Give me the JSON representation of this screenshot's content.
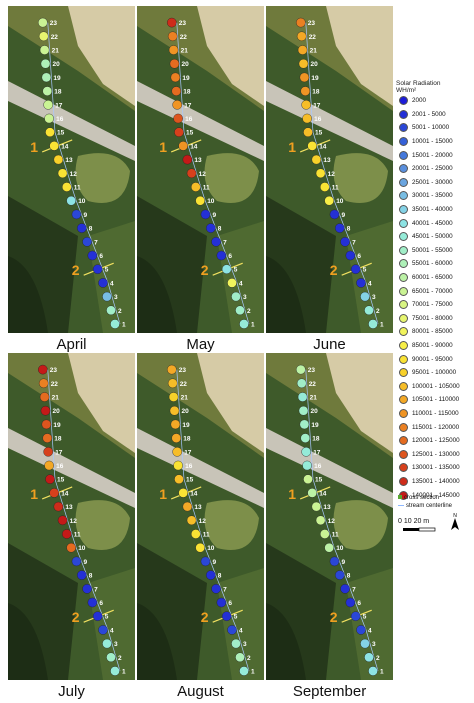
{
  "legend": {
    "title": "Solar Radiation",
    "unit": "WH/m²",
    "classes": [
      {
        "label": "2000",
        "color": "#1d1dd9"
      },
      {
        "label": "2001 - 5000",
        "color": "#2430d6"
      },
      {
        "label": "5001 - 10000",
        "color": "#2b47d6"
      },
      {
        "label": "10001 - 15000",
        "color": "#3560d8"
      },
      {
        "label": "15001 - 20000",
        "color": "#4478db"
      },
      {
        "label": "20001 - 25000",
        "color": "#5a8fdd"
      },
      {
        "label": "25001 - 30000",
        "color": "#6aa5e0"
      },
      {
        "label": "30001 - 35000",
        "color": "#78bde3"
      },
      {
        "label": "35001 - 40000",
        "color": "#84d2e6"
      },
      {
        "label": "40001 - 45000",
        "color": "#8de3e4"
      },
      {
        "label": "45001 - 50000",
        "color": "#95ebd8"
      },
      {
        "label": "50001 - 55000",
        "color": "#a1eec8"
      },
      {
        "label": "55001 - 60000",
        "color": "#aef0b8"
      },
      {
        "label": "60001 - 65000",
        "color": "#bcf2a6"
      },
      {
        "label": "65001 - 70000",
        "color": "#caf394"
      },
      {
        "label": "70001 - 75000",
        "color": "#d8f482"
      },
      {
        "label": "75001 - 80000",
        "color": "#e6f56f"
      },
      {
        "label": "80001 - 85000",
        "color": "#f1f45d"
      },
      {
        "label": "85001 - 90000",
        "color": "#f7ee47"
      },
      {
        "label": "90001 - 95000",
        "color": "#f9e234"
      },
      {
        "label": "95001 - 100000",
        "color": "#f8d12a"
      },
      {
        "label": "100001 - 105000",
        "color": "#f6bd28"
      },
      {
        "label": "105001 - 110000",
        "color": "#f3a826"
      },
      {
        "label": "110001 - 115000",
        "color": "#ef9424"
      },
      {
        "label": "115001 - 120000",
        "color": "#ea8022"
      },
      {
        "label": "120001 - 125000",
        "color": "#e46b20"
      },
      {
        "label": "125001 - 130000",
        "color": "#dd551e"
      },
      {
        "label": "130001 - 135000",
        "color": "#d6401c"
      },
      {
        "label": "135001 - 140000",
        "color": "#ce2c1a"
      },
      {
        "label": "140001 - 145000",
        "color": "#c41a18"
      }
    ],
    "cross_section_label": "cross section",
    "stream_label": "stream centerline",
    "scale_label": "0   10  20 m"
  },
  "cross_sections": [
    "1",
    "2"
  ],
  "panels": [
    {
      "month": "April",
      "points": [
        {
          "n": "1",
          "c": 10
        },
        {
          "n": "2",
          "c": 11
        },
        {
          "n": "3",
          "c": 7
        },
        {
          "n": "4",
          "c": 1
        },
        {
          "n": "5",
          "c": 1
        },
        {
          "n": "6",
          "c": 1
        },
        {
          "n": "7",
          "c": 2
        },
        {
          "n": "8",
          "c": 1
        },
        {
          "n": "9",
          "c": 2
        },
        {
          "n": "10",
          "c": 9
        },
        {
          "n": "11",
          "c": 19
        },
        {
          "n": "12",
          "c": 19
        },
        {
          "n": "13",
          "c": 20
        },
        {
          "n": "14",
          "c": 19
        },
        {
          "n": "15",
          "c": 19
        },
        {
          "n": "16",
          "c": 14
        },
        {
          "n": "17",
          "c": 14
        },
        {
          "n": "18",
          "c": 13
        },
        {
          "n": "19",
          "c": 12
        },
        {
          "n": "20",
          "c": 12
        },
        {
          "n": "21",
          "c": 14
        },
        {
          "n": "22",
          "c": 16
        },
        {
          "n": "23",
          "c": 14
        }
      ]
    },
    {
      "month": "May",
      "points": [
        {
          "n": "1",
          "c": 10
        },
        {
          "n": "2",
          "c": 11
        },
        {
          "n": "3",
          "c": 11
        },
        {
          "n": "4",
          "c": 17
        },
        {
          "n": "5",
          "c": 9
        },
        {
          "n": "6",
          "c": 1
        },
        {
          "n": "7",
          "c": 1
        },
        {
          "n": "8",
          "c": 1
        },
        {
          "n": "9",
          "c": 1
        },
        {
          "n": "10",
          "c": 19
        },
        {
          "n": "11",
          "c": 21
        },
        {
          "n": "12",
          "c": 27
        },
        {
          "n": "13",
          "c": 29
        },
        {
          "n": "14",
          "c": 23
        },
        {
          "n": "15",
          "c": 27
        },
        {
          "n": "16",
          "c": 26
        },
        {
          "n": "17",
          "c": 23
        },
        {
          "n": "18",
          "c": 25
        },
        {
          "n": "19",
          "c": 24
        },
        {
          "n": "20",
          "c": 25
        },
        {
          "n": "21",
          "c": 23
        },
        {
          "n": "22",
          "c": 24
        },
        {
          "n": "23",
          "c": 28
        }
      ]
    },
    {
      "month": "June",
      "points": [
        {
          "n": "1",
          "c": 10
        },
        {
          "n": "2",
          "c": 10
        },
        {
          "n": "3",
          "c": 8
        },
        {
          "n": "4",
          "c": 1
        },
        {
          "n": "5",
          "c": 1
        },
        {
          "n": "6",
          "c": 1
        },
        {
          "n": "7",
          "c": 1
        },
        {
          "n": "8",
          "c": 1
        },
        {
          "n": "9",
          "c": 1
        },
        {
          "n": "10",
          "c": 18
        },
        {
          "n": "11",
          "c": 19
        },
        {
          "n": "12",
          "c": 19
        },
        {
          "n": "13",
          "c": 20
        },
        {
          "n": "14",
          "c": 19
        },
        {
          "n": "15",
          "c": 21
        },
        {
          "n": "16",
          "c": 21
        },
        {
          "n": "17",
          "c": 21
        },
        {
          "n": "18",
          "c": 23
        },
        {
          "n": "19",
          "c": 23
        },
        {
          "n": "20",
          "c": 21
        },
        {
          "n": "21",
          "c": 22
        },
        {
          "n": "22",
          "c": 22
        },
        {
          "n": "23",
          "c": 24
        }
      ]
    },
    {
      "month": "July",
      "points": [
        {
          "n": "1",
          "c": 10
        },
        {
          "n": "2",
          "c": 11
        },
        {
          "n": "3",
          "c": 10
        },
        {
          "n": "4",
          "c": 2
        },
        {
          "n": "5",
          "c": 1
        },
        {
          "n": "6",
          "c": 1
        },
        {
          "n": "7",
          "c": 1
        },
        {
          "n": "8",
          "c": 1
        },
        {
          "n": "9",
          "c": 2
        },
        {
          "n": "10",
          "c": 25
        },
        {
          "n": "11",
          "c": 29
        },
        {
          "n": "12",
          "c": 29
        },
        {
          "n": "13",
          "c": 28
        },
        {
          "n": "14",
          "c": 27
        },
        {
          "n": "15",
          "c": 29
        },
        {
          "n": "16",
          "c": 22
        },
        {
          "n": "17",
          "c": 27
        },
        {
          "n": "18",
          "c": 25
        },
        {
          "n": "19",
          "c": 26
        },
        {
          "n": "20",
          "c": 29
        },
        {
          "n": "21",
          "c": 25
        },
        {
          "n": "22",
          "c": 24
        },
        {
          "n": "23",
          "c": 29
        }
      ]
    },
    {
      "month": "August",
      "points": [
        {
          "n": "1",
          "c": 10
        },
        {
          "n": "2",
          "c": 12
        },
        {
          "n": "3",
          "c": 11
        },
        {
          "n": "4",
          "c": 2
        },
        {
          "n": "5",
          "c": 1
        },
        {
          "n": "6",
          "c": 1
        },
        {
          "n": "7",
          "c": 1
        },
        {
          "n": "8",
          "c": 1
        },
        {
          "n": "9",
          "c": 2
        },
        {
          "n": "10",
          "c": 19
        },
        {
          "n": "11",
          "c": 19
        },
        {
          "n": "12",
          "c": 21
        },
        {
          "n": "13",
          "c": 22
        },
        {
          "n": "14",
          "c": 19
        },
        {
          "n": "15",
          "c": 21
        },
        {
          "n": "16",
          "c": 19
        },
        {
          "n": "17",
          "c": 21
        },
        {
          "n": "18",
          "c": 22
        },
        {
          "n": "19",
          "c": 22
        },
        {
          "n": "20",
          "c": 21
        },
        {
          "n": "21",
          "c": 20
        },
        {
          "n": "22",
          "c": 21
        },
        {
          "n": "23",
          "c": 22
        }
      ]
    },
    {
      "month": "September",
      "points": [
        {
          "n": "1",
          "c": 9
        },
        {
          "n": "2",
          "c": 9
        },
        {
          "n": "3",
          "c": 8
        },
        {
          "n": "4",
          "c": 2
        },
        {
          "n": "5",
          "c": 2
        },
        {
          "n": "6",
          "c": 1
        },
        {
          "n": "7",
          "c": 1
        },
        {
          "n": "8",
          "c": 2
        },
        {
          "n": "9",
          "c": 2
        },
        {
          "n": "10",
          "c": 13
        },
        {
          "n": "11",
          "c": 14
        },
        {
          "n": "12",
          "c": 14
        },
        {
          "n": "13",
          "c": 14
        },
        {
          "n": "14",
          "c": 13
        },
        {
          "n": "15",
          "c": 14
        },
        {
          "n": "16",
          "c": 10
        },
        {
          "n": "17",
          "c": 10
        },
        {
          "n": "18",
          "c": 11
        },
        {
          "n": "19",
          "c": 11
        },
        {
          "n": "20",
          "c": 11
        },
        {
          "n": "21",
          "c": 10
        },
        {
          "n": "22",
          "c": 11
        },
        {
          "n": "23",
          "c": 13
        }
      ]
    }
  ]
}
